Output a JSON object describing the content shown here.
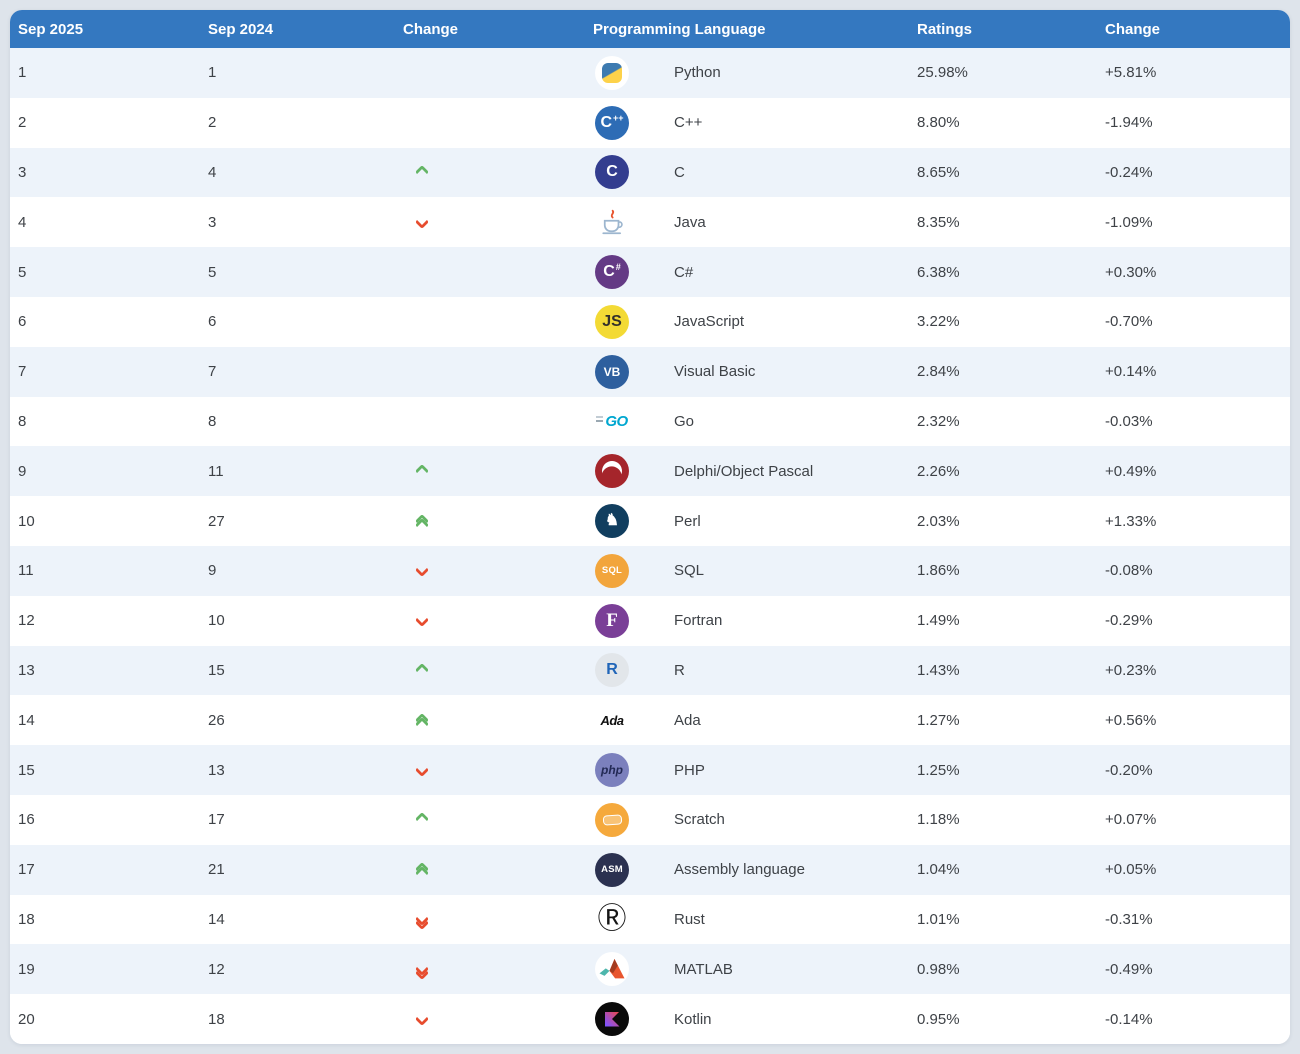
{
  "colors": {
    "page_bg": "#dee4eb",
    "header_bg": "#3478c0",
    "header_text": "#ffffff",
    "row_stripe": "#edf3fa",
    "row_white": "#ffffff",
    "cell_text": "#3e4247",
    "up_arrow": "#64b565",
    "down_arrow": "#e74c2e"
  },
  "chart_data": {
    "type": "table",
    "columns": [
      "Sep 2025",
      "Sep 2024",
      "Change",
      "Programming Language",
      "Ratings",
      "Change"
    ],
    "rows": [
      {
        "sep2025": "1",
        "sep2024": "1",
        "move": "none",
        "language": "Python",
        "rating": "25.98%",
        "change": "+5.81%",
        "icon": {
          "name": "python-icon",
          "variant": "python",
          "bg": "#ffffff"
        }
      },
      {
        "sep2025": "2",
        "sep2024": "2",
        "move": "none",
        "language": "C++",
        "rating": "8.80%",
        "change": "-1.94%",
        "icon": {
          "name": "cpp-icon",
          "variant": "circle",
          "bg": "#2d6cb5",
          "fg": "#ffffff",
          "text": "C",
          "suffix": "++"
        }
      },
      {
        "sep2025": "3",
        "sep2024": "4",
        "move": "up",
        "language": "C",
        "rating": "8.65%",
        "change": "-0.24%",
        "icon": {
          "name": "c-icon",
          "variant": "circle",
          "bg": "#333d8f",
          "fg": "#ffffff",
          "text": "C"
        }
      },
      {
        "sep2025": "4",
        "sep2024": "3",
        "move": "down",
        "language": "Java",
        "rating": "8.35%",
        "change": "-1.09%",
        "icon": {
          "name": "java-icon",
          "variant": "java",
          "bg": "#ffffff"
        }
      },
      {
        "sep2025": "5",
        "sep2024": "5",
        "move": "none",
        "language": "C#",
        "rating": "6.38%",
        "change": "+0.30%",
        "icon": {
          "name": "csharp-icon",
          "variant": "circle",
          "bg": "#643a85",
          "fg": "#ffffff",
          "text": "C",
          "suffix": "#"
        }
      },
      {
        "sep2025": "6",
        "sep2024": "6",
        "move": "none",
        "language": "JavaScript",
        "rating": "3.22%",
        "change": "-0.70%",
        "icon": {
          "name": "javascript-icon",
          "variant": "circle",
          "bg": "#f3da35",
          "fg": "#33302b",
          "text": "JS"
        }
      },
      {
        "sep2025": "7",
        "sep2024": "7",
        "move": "none",
        "language": "Visual Basic",
        "rating": "2.84%",
        "change": "+0.14%",
        "icon": {
          "name": "visual-basic-icon",
          "variant": "circle",
          "bg": "#2e5f9e",
          "fg": "#ffffff",
          "text": "VB",
          "cls": "md"
        }
      },
      {
        "sep2025": "8",
        "sep2024": "8",
        "move": "none",
        "language": "Go",
        "rating": "2.32%",
        "change": "-0.03%",
        "icon": {
          "name": "go-icon",
          "variant": "go",
          "fg": "#00a7d0",
          "text": "GO"
        }
      },
      {
        "sep2025": "9",
        "sep2024": "11",
        "move": "up",
        "language": "Delphi/Object Pascal",
        "rating": "2.26%",
        "change": "+0.49%",
        "icon": {
          "name": "delphi-icon",
          "variant": "delphi",
          "bg": "#a5252b"
        }
      },
      {
        "sep2025": "10",
        "sep2024": "27",
        "move": "up2",
        "language": "Perl",
        "rating": "2.03%",
        "change": "+1.33%",
        "icon": {
          "name": "perl-icon",
          "variant": "circle",
          "bg": "#113e5f",
          "fg": "#ffffff",
          "text": "♞"
        }
      },
      {
        "sep2025": "11",
        "sep2024": "9",
        "move": "down",
        "language": "SQL",
        "rating": "1.86%",
        "change": "-0.08%",
        "icon": {
          "name": "sql-icon",
          "variant": "circle",
          "bg": "#f2a53c",
          "fg": "#ffffff",
          "text": "SQL",
          "cls": "sm"
        }
      },
      {
        "sep2025": "12",
        "sep2024": "10",
        "move": "down",
        "language": "Fortran",
        "rating": "1.49%",
        "change": "-0.29%",
        "icon": {
          "name": "fortran-icon",
          "variant": "circle",
          "bg": "#7a3f97",
          "fg": "#ffffff",
          "text": "F",
          "cls": "serif"
        }
      },
      {
        "sep2025": "13",
        "sep2024": "15",
        "move": "up",
        "language": "R",
        "rating": "1.43%",
        "change": "+0.23%",
        "icon": {
          "name": "r-icon",
          "variant": "circle",
          "bg": "#e2e6ea",
          "fg": "#2065b8",
          "text": "R"
        }
      },
      {
        "sep2025": "14",
        "sep2024": "26",
        "move": "up2",
        "language": "Ada",
        "rating": "1.27%",
        "change": "+0.56%",
        "icon": {
          "name": "ada-icon",
          "variant": "ada",
          "fg": "#101010",
          "text": "Ada"
        }
      },
      {
        "sep2025": "15",
        "sep2024": "13",
        "move": "down",
        "language": "PHP",
        "rating": "1.25%",
        "change": "-0.20%",
        "icon": {
          "name": "php-icon",
          "variant": "circle",
          "bg": "#7b80bd",
          "fg": "#232a55",
          "text": "php",
          "cls": "md ital"
        }
      },
      {
        "sep2025": "16",
        "sep2024": "17",
        "move": "up",
        "language": "Scratch",
        "rating": "1.18%",
        "change": "+0.07%",
        "icon": {
          "name": "scratch-icon",
          "variant": "scratch",
          "bg": "#f5a93c"
        }
      },
      {
        "sep2025": "17",
        "sep2024": "21",
        "move": "up2",
        "language": "Assembly language",
        "rating": "1.04%",
        "change": "+0.05%",
        "icon": {
          "name": "assembly-icon",
          "variant": "circle",
          "bg": "#2b3150",
          "fg": "#ffffff",
          "text": "ASM",
          "cls": "sm"
        }
      },
      {
        "sep2025": "18",
        "sep2024": "14",
        "move": "down2",
        "language": "Rust",
        "rating": "1.01%",
        "change": "-0.31%",
        "icon": {
          "name": "rust-icon",
          "variant": "rust",
          "fg": "#151515",
          "text": "Ⓡ"
        }
      },
      {
        "sep2025": "19",
        "sep2024": "12",
        "move": "down2",
        "language": "MATLAB",
        "rating": "0.98%",
        "change": "-0.49%",
        "icon": {
          "name": "matlab-icon",
          "variant": "matlab",
          "bg": "#ffffff"
        }
      },
      {
        "sep2025": "20",
        "sep2024": "18",
        "move": "down",
        "language": "Kotlin",
        "rating": "0.95%",
        "change": "-0.14%",
        "icon": {
          "name": "kotlin-icon",
          "variant": "kotlin",
          "bg": "#0a0a0a"
        }
      }
    ]
  }
}
